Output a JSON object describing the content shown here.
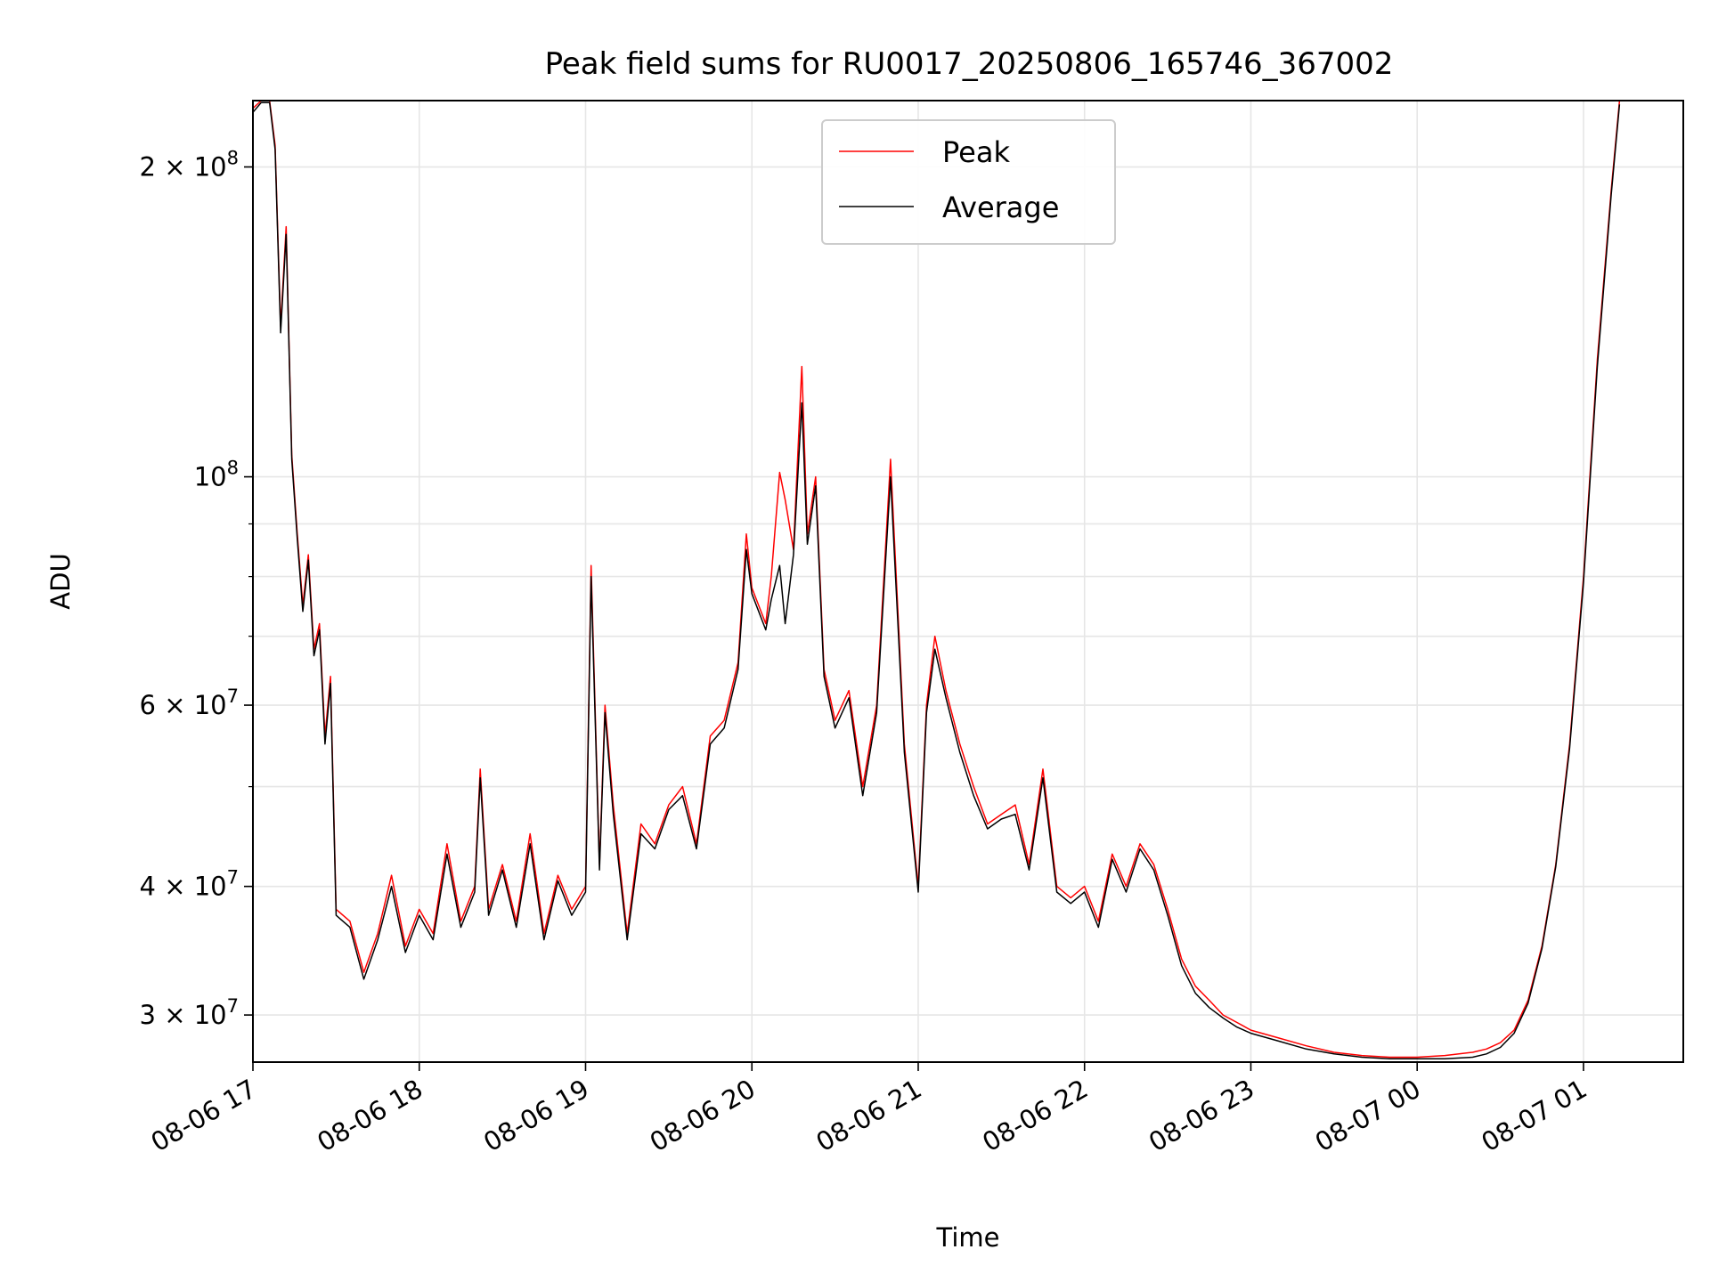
{
  "chart_data": {
    "type": "line",
    "title": "Peak field sums for RU0017_20250806_165746_367002",
    "xlabel": "Time",
    "ylabel": "ADU",
    "yscale": "log",
    "xlim": [
      "2025-08-06 17:00",
      "2025-08-07 01:36"
    ],
    "ylim": [
      27000000,
      232000000
    ],
    "x_tick_labels": [
      "08-06 17",
      "08-06 18",
      "08-06 19",
      "08-06 20",
      "08-06 21",
      "08-06 22",
      "08-06 23",
      "08-07 00",
      "08-07 01"
    ],
    "x_tick_times": [
      "2025-08-06 17:00",
      "2025-08-06 18:00",
      "2025-08-06 19:00",
      "2025-08-06 20:00",
      "2025-08-06 21:00",
      "2025-08-06 22:00",
      "2025-08-06 23:00",
      "2025-08-07 00:00",
      "2025-08-07 01:00"
    ],
    "y_ticks": [
      {
        "value": 30000000,
        "mant": "3",
        "exp": "7"
      },
      {
        "value": 40000000,
        "mant": "4",
        "exp": "7"
      },
      {
        "value": 60000000,
        "mant": "6",
        "exp": "7"
      },
      {
        "value": 100000000,
        "mant": "",
        "exp": "8"
      },
      {
        "value": 200000000,
        "mant": "2",
        "exp": "8"
      }
    ],
    "y_minor_ticks": [
      50000000,
      70000000,
      80000000,
      90000000
    ],
    "grid": true,
    "legend_position": "upper center",
    "colors": {
      "peak": "#ff0000",
      "average": "#000000",
      "grid": "#e6e6e6"
    },
    "series": [
      {
        "name": "Peak",
        "x": [
          "2025-08-06 17:00",
          "2025-08-06 17:03",
          "2025-08-06 17:06",
          "2025-08-06 17:08",
          "2025-08-06 17:10",
          "2025-08-06 17:12",
          "2025-08-06 17:14",
          "2025-08-06 17:16",
          "2025-08-06 17:18",
          "2025-08-06 17:20",
          "2025-08-06 17:22",
          "2025-08-06 17:24",
          "2025-08-06 17:26",
          "2025-08-06 17:28",
          "2025-08-06 17:30",
          "2025-08-06 17:35",
          "2025-08-06 17:40",
          "2025-08-06 17:45",
          "2025-08-06 17:50",
          "2025-08-06 17:55",
          "2025-08-06 18:00",
          "2025-08-06 18:05",
          "2025-08-06 18:10",
          "2025-08-06 18:15",
          "2025-08-06 18:20",
          "2025-08-06 18:22",
          "2025-08-06 18:25",
          "2025-08-06 18:30",
          "2025-08-06 18:35",
          "2025-08-06 18:40",
          "2025-08-06 18:45",
          "2025-08-06 18:50",
          "2025-08-06 18:55",
          "2025-08-06 19:00",
          "2025-08-06 19:02",
          "2025-08-06 19:05",
          "2025-08-06 19:07",
          "2025-08-06 19:10",
          "2025-08-06 19:15",
          "2025-08-06 19:20",
          "2025-08-06 19:25",
          "2025-08-06 19:30",
          "2025-08-06 19:35",
          "2025-08-06 19:40",
          "2025-08-06 19:45",
          "2025-08-06 19:50",
          "2025-08-06 19:55",
          "2025-08-06 19:58",
          "2025-08-06 20:00",
          "2025-08-06 20:05",
          "2025-08-06 20:07",
          "2025-08-06 20:10",
          "2025-08-06 20:12",
          "2025-08-06 20:15",
          "2025-08-06 20:18",
          "2025-08-06 20:20",
          "2025-08-06 20:23",
          "2025-08-06 20:26",
          "2025-08-06 20:30",
          "2025-08-06 20:35",
          "2025-08-06 20:40",
          "2025-08-06 20:45",
          "2025-08-06 20:50",
          "2025-08-06 20:55",
          "2025-08-06 21:00",
          "2025-08-06 21:03",
          "2025-08-06 21:06",
          "2025-08-06 21:10",
          "2025-08-06 21:15",
          "2025-08-06 21:20",
          "2025-08-06 21:25",
          "2025-08-06 21:30",
          "2025-08-06 21:35",
          "2025-08-06 21:40",
          "2025-08-06 21:45",
          "2025-08-06 21:50",
          "2025-08-06 21:55",
          "2025-08-06 22:00",
          "2025-08-06 22:05",
          "2025-08-06 22:10",
          "2025-08-06 22:15",
          "2025-08-06 22:20",
          "2025-08-06 22:25",
          "2025-08-06 22:30",
          "2025-08-06 22:35",
          "2025-08-06 22:40",
          "2025-08-06 22:45",
          "2025-08-06 22:50",
          "2025-08-06 22:55",
          "2025-08-06 23:00",
          "2025-08-06 23:10",
          "2025-08-06 23:20",
          "2025-08-06 23:30",
          "2025-08-06 23:40",
          "2025-08-06 23:50",
          "2025-08-07 00:00",
          "2025-08-07 00:10",
          "2025-08-07 00:20",
          "2025-08-07 00:25",
          "2025-08-07 00:30",
          "2025-08-07 00:35",
          "2025-08-07 00:40",
          "2025-08-07 00:45",
          "2025-08-07 00:50",
          "2025-08-07 00:55",
          "2025-08-07 01:00",
          "2025-08-07 01:05",
          "2025-08-07 01:10",
          "2025-08-07 01:13"
        ],
        "y": [
          228000000,
          232000000,
          232000000,
          210000000,
          140000000,
          175000000,
          105000000,
          88000000,
          75000000,
          84000000,
          68000000,
          72000000,
          56000000,
          64000000,
          38000000,
          37000000,
          33000000,
          36000000,
          41000000,
          35000000,
          38000000,
          36000000,
          44000000,
          37000000,
          40000000,
          52000000,
          38000000,
          42000000,
          37000000,
          45000000,
          36000000,
          41000000,
          38000000,
          40000000,
          82000000,
          42000000,
          60000000,
          48000000,
          36000000,
          46000000,
          44000000,
          48000000,
          50000000,
          44000000,
          56000000,
          58000000,
          66000000,
          88000000,
          78000000,
          72000000,
          80000000,
          101000000,
          95000000,
          85000000,
          128000000,
          88000000,
          100000000,
          65000000,
          58000000,
          62000000,
          50000000,
          60000000,
          104000000,
          55000000,
          40000000,
          60000000,
          70000000,
          62000000,
          55000000,
          50000000,
          46000000,
          47000000,
          48000000,
          42000000,
          52000000,
          40000000,
          39000000,
          40000000,
          37000000,
          43000000,
          40000000,
          44000000,
          42000000,
          38000000,
          34000000,
          32000000,
          31000000,
          30000000,
          29500000,
          29000000,
          28500000,
          28000000,
          27600000,
          27400000,
          27300000,
          27300000,
          27400000,
          27600000,
          27800000,
          28200000,
          29000000,
          31000000,
          35000000,
          42000000,
          55000000,
          80000000,
          130000000,
          190000000,
          232000000
        ]
      },
      {
        "name": "Average",
        "x": [
          "2025-08-06 17:00",
          "2025-08-06 17:03",
          "2025-08-06 17:06",
          "2025-08-06 17:08",
          "2025-08-06 17:10",
          "2025-08-06 17:12",
          "2025-08-06 17:14",
          "2025-08-06 17:16",
          "2025-08-06 17:18",
          "2025-08-06 17:20",
          "2025-08-06 17:22",
          "2025-08-06 17:24",
          "2025-08-06 17:26",
          "2025-08-06 17:28",
          "2025-08-06 17:30",
          "2025-08-06 17:35",
          "2025-08-06 17:40",
          "2025-08-06 17:45",
          "2025-08-06 17:50",
          "2025-08-06 17:55",
          "2025-08-06 18:00",
          "2025-08-06 18:05",
          "2025-08-06 18:10",
          "2025-08-06 18:15",
          "2025-08-06 18:20",
          "2025-08-06 18:22",
          "2025-08-06 18:25",
          "2025-08-06 18:30",
          "2025-08-06 18:35",
          "2025-08-06 18:40",
          "2025-08-06 18:45",
          "2025-08-06 18:50",
          "2025-08-06 18:55",
          "2025-08-06 19:00",
          "2025-08-06 19:02",
          "2025-08-06 19:05",
          "2025-08-06 19:07",
          "2025-08-06 19:10",
          "2025-08-06 19:15",
          "2025-08-06 19:20",
          "2025-08-06 19:25",
          "2025-08-06 19:30",
          "2025-08-06 19:35",
          "2025-08-06 19:40",
          "2025-08-06 19:45",
          "2025-08-06 19:50",
          "2025-08-06 19:55",
          "2025-08-06 19:58",
          "2025-08-06 20:00",
          "2025-08-06 20:05",
          "2025-08-06 20:07",
          "2025-08-06 20:10",
          "2025-08-06 20:12",
          "2025-08-06 20:15",
          "2025-08-06 20:18",
          "2025-08-06 20:20",
          "2025-08-06 20:23",
          "2025-08-06 20:26",
          "2025-08-06 20:30",
          "2025-08-06 20:35",
          "2025-08-06 20:40",
          "2025-08-06 20:45",
          "2025-08-06 20:50",
          "2025-08-06 20:55",
          "2025-08-06 21:00",
          "2025-08-06 21:03",
          "2025-08-06 21:06",
          "2025-08-06 21:10",
          "2025-08-06 21:15",
          "2025-08-06 21:20",
          "2025-08-06 21:25",
          "2025-08-06 21:30",
          "2025-08-06 21:35",
          "2025-08-06 21:40",
          "2025-08-06 21:45",
          "2025-08-06 21:50",
          "2025-08-06 21:55",
          "2025-08-06 22:00",
          "2025-08-06 22:05",
          "2025-08-06 22:10",
          "2025-08-06 22:15",
          "2025-08-06 22:20",
          "2025-08-06 22:25",
          "2025-08-06 22:30",
          "2025-08-06 22:35",
          "2025-08-06 22:40",
          "2025-08-06 22:45",
          "2025-08-06 22:50",
          "2025-08-06 22:55",
          "2025-08-06 23:00",
          "2025-08-06 23:10",
          "2025-08-06 23:20",
          "2025-08-06 23:30",
          "2025-08-06 23:40",
          "2025-08-06 23:50",
          "2025-08-07 00:00",
          "2025-08-07 00:10",
          "2025-08-07 00:20",
          "2025-08-07 00:25",
          "2025-08-07 00:30",
          "2025-08-07 00:35",
          "2025-08-07 00:40",
          "2025-08-07 00:45",
          "2025-08-07 00:50",
          "2025-08-07 00:55",
          "2025-08-07 01:00",
          "2025-08-07 01:05",
          "2025-08-07 01:10",
          "2025-08-07 01:13"
        ],
        "y": [
          226000000,
          231000000,
          231000000,
          208000000,
          138000000,
          172000000,
          104000000,
          87000000,
          74000000,
          83000000,
          67000000,
          71000000,
          55000000,
          63000000,
          37500000,
          36500000,
          32500000,
          35500000,
          40000000,
          34500000,
          37500000,
          35500000,
          43000000,
          36500000,
          39500000,
          51000000,
          37500000,
          41500000,
          36500000,
          44000000,
          35500000,
          40500000,
          37500000,
          39500000,
          80000000,
          41500000,
          59000000,
          47000000,
          35500000,
          45000000,
          43500000,
          47500000,
          49000000,
          43500000,
          55000000,
          57000000,
          65000000,
          85000000,
          77000000,
          71000000,
          76000000,
          82000000,
          72000000,
          84000000,
          118000000,
          86000000,
          98000000,
          64000000,
          57000000,
          61000000,
          49000000,
          59000000,
          100000000,
          54000000,
          39500000,
          59000000,
          68000000,
          61000000,
          54000000,
          49000000,
          45500000,
          46500000,
          47000000,
          41500000,
          51000000,
          39500000,
          38500000,
          39500000,
          36500000,
          42500000,
          39500000,
          43500000,
          41500000,
          37500000,
          33500000,
          31500000,
          30500000,
          29800000,
          29200000,
          28800000,
          28300000,
          27800000,
          27500000,
          27300000,
          27200000,
          27200000,
          27200000,
          27300000,
          27500000,
          27900000,
          28800000,
          30800000,
          34800000,
          41800000,
          54500000,
          79000000,
          128000000,
          188000000,
          230000000
        ]
      }
    ]
  }
}
